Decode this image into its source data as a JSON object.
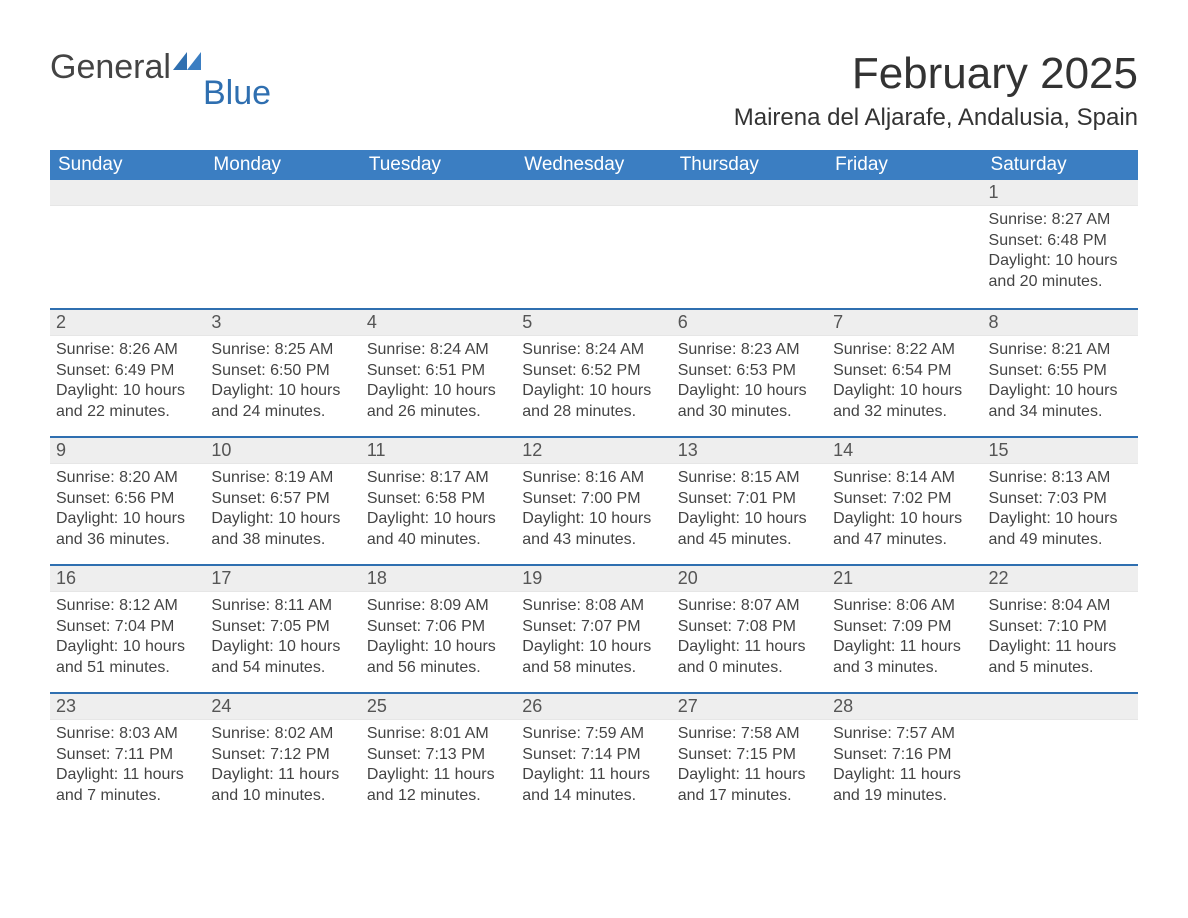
{
  "logo": {
    "word1": "General",
    "word2": "Blue"
  },
  "title": "February 2025",
  "location": "Mairena del Aljarafe, Andalusia, Spain",
  "colors": {
    "header_blue": "#3b7ec2",
    "accent_blue": "#2f6fb0",
    "row_gray": "#eeeeee",
    "text_dark": "#333333",
    "page_bg": "#ffffff"
  },
  "weekdays": [
    "Sunday",
    "Monday",
    "Tuesday",
    "Wednesday",
    "Thursday",
    "Friday",
    "Saturday"
  ],
  "first_day_column": 6,
  "days_in_month": 28,
  "days": [
    {
      "n": 1,
      "sunrise": "8:27 AM",
      "sunset": "6:48 PM",
      "daylight": "10 hours and 20 minutes."
    },
    {
      "n": 2,
      "sunrise": "8:26 AM",
      "sunset": "6:49 PM",
      "daylight": "10 hours and 22 minutes."
    },
    {
      "n": 3,
      "sunrise": "8:25 AM",
      "sunset": "6:50 PM",
      "daylight": "10 hours and 24 minutes."
    },
    {
      "n": 4,
      "sunrise": "8:24 AM",
      "sunset": "6:51 PM",
      "daylight": "10 hours and 26 minutes."
    },
    {
      "n": 5,
      "sunrise": "8:24 AM",
      "sunset": "6:52 PM",
      "daylight": "10 hours and 28 minutes."
    },
    {
      "n": 6,
      "sunrise": "8:23 AM",
      "sunset": "6:53 PM",
      "daylight": "10 hours and 30 minutes."
    },
    {
      "n": 7,
      "sunrise": "8:22 AM",
      "sunset": "6:54 PM",
      "daylight": "10 hours and 32 minutes."
    },
    {
      "n": 8,
      "sunrise": "8:21 AM",
      "sunset": "6:55 PM",
      "daylight": "10 hours and 34 minutes."
    },
    {
      "n": 9,
      "sunrise": "8:20 AM",
      "sunset": "6:56 PM",
      "daylight": "10 hours and 36 minutes."
    },
    {
      "n": 10,
      "sunrise": "8:19 AM",
      "sunset": "6:57 PM",
      "daylight": "10 hours and 38 minutes."
    },
    {
      "n": 11,
      "sunrise": "8:17 AM",
      "sunset": "6:58 PM",
      "daylight": "10 hours and 40 minutes."
    },
    {
      "n": 12,
      "sunrise": "8:16 AM",
      "sunset": "7:00 PM",
      "daylight": "10 hours and 43 minutes."
    },
    {
      "n": 13,
      "sunrise": "8:15 AM",
      "sunset": "7:01 PM",
      "daylight": "10 hours and 45 minutes."
    },
    {
      "n": 14,
      "sunrise": "8:14 AM",
      "sunset": "7:02 PM",
      "daylight": "10 hours and 47 minutes."
    },
    {
      "n": 15,
      "sunrise": "8:13 AM",
      "sunset": "7:03 PM",
      "daylight": "10 hours and 49 minutes."
    },
    {
      "n": 16,
      "sunrise": "8:12 AM",
      "sunset": "7:04 PM",
      "daylight": "10 hours and 51 minutes."
    },
    {
      "n": 17,
      "sunrise": "8:11 AM",
      "sunset": "7:05 PM",
      "daylight": "10 hours and 54 minutes."
    },
    {
      "n": 18,
      "sunrise": "8:09 AM",
      "sunset": "7:06 PM",
      "daylight": "10 hours and 56 minutes."
    },
    {
      "n": 19,
      "sunrise": "8:08 AM",
      "sunset": "7:07 PM",
      "daylight": "10 hours and 58 minutes."
    },
    {
      "n": 20,
      "sunrise": "8:07 AM",
      "sunset": "7:08 PM",
      "daylight": "11 hours and 0 minutes."
    },
    {
      "n": 21,
      "sunrise": "8:06 AM",
      "sunset": "7:09 PM",
      "daylight": "11 hours and 3 minutes."
    },
    {
      "n": 22,
      "sunrise": "8:04 AM",
      "sunset": "7:10 PM",
      "daylight": "11 hours and 5 minutes."
    },
    {
      "n": 23,
      "sunrise": "8:03 AM",
      "sunset": "7:11 PM",
      "daylight": "11 hours and 7 minutes."
    },
    {
      "n": 24,
      "sunrise": "8:02 AM",
      "sunset": "7:12 PM",
      "daylight": "11 hours and 10 minutes."
    },
    {
      "n": 25,
      "sunrise": "8:01 AM",
      "sunset": "7:13 PM",
      "daylight": "11 hours and 12 minutes."
    },
    {
      "n": 26,
      "sunrise": "7:59 AM",
      "sunset": "7:14 PM",
      "daylight": "11 hours and 14 minutes."
    },
    {
      "n": 27,
      "sunrise": "7:58 AM",
      "sunset": "7:15 PM",
      "daylight": "11 hours and 17 minutes."
    },
    {
      "n": 28,
      "sunrise": "7:57 AM",
      "sunset": "7:16 PM",
      "daylight": "11 hours and 19 minutes."
    }
  ],
  "labels": {
    "sunrise": "Sunrise: ",
    "sunset": "Sunset: ",
    "daylight": "Daylight: "
  }
}
